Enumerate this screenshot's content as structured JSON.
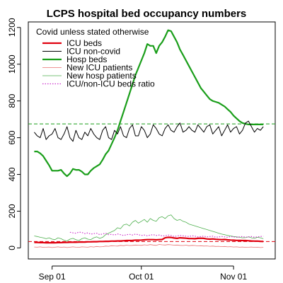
{
  "chart_data": {
    "type": "line",
    "title": "LCPS hospital bed occupancy numbers",
    "xlabel": "",
    "ylabel": "",
    "legend": {
      "title": "Covid unless stated otherwise",
      "placement": "top-left",
      "entries": [
        {
          "label": "ICU beds",
          "color": "#e0000f",
          "style": "solid-thick"
        },
        {
          "label": "ICU non-covid",
          "color": "#000000",
          "style": "solid"
        },
        {
          "label": "Hosp beds",
          "color": "#1a9e1a",
          "style": "solid-thick"
        },
        {
          "label": "New ICU patients",
          "color": "#e87070",
          "style": "solid-thin"
        },
        {
          "label": "New hosp patients",
          "color": "#4caf4c",
          "style": "solid-thin"
        },
        {
          "label": "ICU/non-ICU beds ratio",
          "color": "#cc33cc",
          "style": "dotted"
        }
      ]
    },
    "x_axis": {
      "ticks": [
        {
          "day": 0,
          "label": "Sep 01"
        },
        {
          "day": 30,
          "label": "Oct 01"
        },
        {
          "day": 61,
          "label": "Nov 01"
        }
      ],
      "xlim": [
        -8,
        75
      ]
    },
    "y_axis": {
      "ticks": [
        0,
        200,
        400,
        600,
        800,
        1000,
        1200
      ],
      "ylim": [
        -60,
        1230
      ]
    },
    "reference_lines": [
      {
        "y": 675,
        "color": "#1a9e1a",
        "style": "dashed"
      },
      {
        "y": 35,
        "color": "#e0000f",
        "style": "dashed"
      }
    ],
    "series": [
      {
        "name": "Hosp beds",
        "color": "#1a9e1a",
        "x": [
          -6,
          -5,
          -4,
          -3,
          -2,
          -1,
          0,
          1,
          2,
          3,
          4,
          5,
          6,
          7,
          8,
          9,
          10,
          11,
          12,
          13,
          14,
          15,
          16,
          17,
          18,
          19,
          20,
          21,
          22,
          23,
          24,
          25,
          26,
          27,
          28,
          29,
          30,
          31,
          32,
          33,
          34,
          35,
          36,
          37,
          38,
          39,
          40,
          41,
          42,
          43,
          44,
          45,
          46,
          47,
          48,
          49,
          50,
          51,
          52,
          53,
          54,
          55,
          56,
          57,
          58,
          59,
          60,
          61,
          62,
          63,
          64,
          65,
          66,
          67,
          68,
          69,
          70,
          71
        ],
        "values": [
          525,
          525,
          515,
          500,
          475,
          450,
          420,
          420,
          420,
          425,
          405,
          390,
          405,
          430,
          425,
          425,
          415,
          400,
          400,
          420,
          435,
          445,
          455,
          480,
          510,
          530,
          565,
          600,
          640,
          690,
          740,
          790,
          840,
          890,
          940,
          980,
          1020,
          1060,
          1110,
          1100,
          1100,
          1060,
          1100,
          1120,
          1150,
          1185,
          1180,
          1150,
          1120,
          1080,
          1050,
          1020,
          990,
          960,
          930,
          900,
          870,
          850,
          830,
          810,
          800,
          795,
          790,
          780,
          770,
          755,
          740,
          720,
          705,
          690,
          680,
          675,
          672,
          672,
          672,
          672,
          672,
          672
        ]
      },
      {
        "name": "ICU non-covid",
        "color": "#000000",
        "x": [
          -6,
          -5,
          -4,
          -3,
          -2,
          -1,
          0,
          1,
          2,
          3,
          4,
          5,
          6,
          7,
          8,
          9,
          10,
          11,
          12,
          13,
          14,
          15,
          16,
          17,
          18,
          19,
          20,
          21,
          22,
          23,
          24,
          25,
          26,
          27,
          28,
          29,
          30,
          31,
          32,
          33,
          34,
          35,
          36,
          37,
          38,
          39,
          40,
          41,
          42,
          43,
          44,
          45,
          46,
          47,
          48,
          49,
          50,
          51,
          52,
          53,
          54,
          55,
          56,
          57,
          58,
          59,
          60,
          61,
          62,
          63,
          64,
          65,
          66,
          67,
          68,
          69,
          70,
          71
        ],
        "values": [
          630,
          610,
          600,
          650,
          590,
          610,
          620,
          650,
          600,
          590,
          620,
          660,
          600,
          580,
          640,
          600,
          590,
          630,
          610,
          650,
          620,
          600,
          590,
          640,
          660,
          600,
          590,
          640,
          620,
          660,
          610,
          600,
          650,
          670,
          610,
          610,
          660,
          640,
          600,
          620,
          670,
          650,
          620,
          610,
          650,
          670,
          640,
          630,
          660,
          680,
          630,
          640,
          660,
          640,
          630,
          670,
          650,
          630,
          660,
          670,
          620,
          640,
          660,
          610,
          640,
          670,
          630,
          650,
          660,
          620,
          640,
          680,
          690,
          660,
          630,
          650,
          640,
          660
        ]
      },
      {
        "name": "ICU beds",
        "color": "#e0000f",
        "x": [
          -6,
          -5,
          -4,
          -3,
          -2,
          -1,
          0,
          1,
          2,
          3,
          4,
          5,
          6,
          7,
          8,
          9,
          10,
          11,
          12,
          13,
          14,
          15,
          16,
          17,
          18,
          19,
          20,
          21,
          22,
          23,
          24,
          25,
          26,
          27,
          28,
          29,
          30,
          31,
          32,
          33,
          34,
          35,
          36,
          37,
          38,
          39,
          40,
          41,
          42,
          43,
          44,
          45,
          46,
          47,
          48,
          49,
          50,
          51,
          52,
          53,
          54,
          55,
          56,
          57,
          58,
          59,
          60,
          61,
          62,
          63,
          64,
          65,
          66,
          67,
          68,
          69,
          70,
          71
        ],
        "values": [
          30,
          30,
          29,
          29,
          28,
          28,
          28,
          28,
          29,
          29,
          30,
          30,
          31,
          31,
          31,
          32,
          32,
          32,
          33,
          33,
          34,
          34,
          35,
          35,
          36,
          36,
          37,
          37,
          38,
          38,
          39,
          40,
          40,
          41,
          42,
          42,
          43,
          44,
          45,
          45,
          45,
          44,
          45,
          46,
          55,
          58,
          57,
          54,
          52,
          55,
          54,
          53,
          51,
          51,
          50,
          52,
          53,
          52,
          49,
          48,
          49,
          47,
          46,
          45,
          46,
          44,
          43,
          42,
          41,
          41,
          40,
          40,
          39,
          38,
          37,
          37,
          36,
          35
        ]
      },
      {
        "name": "New hosp patients",
        "color": "#4caf4c",
        "x": [
          -6,
          -5,
          -4,
          -3,
          -2,
          -1,
          0,
          1,
          2,
          3,
          4,
          5,
          6,
          7,
          8,
          9,
          10,
          11,
          12,
          13,
          14,
          15,
          16,
          17,
          18,
          19,
          20,
          21,
          22,
          23,
          24,
          25,
          26,
          27,
          28,
          29,
          30,
          31,
          32,
          33,
          34,
          35,
          36,
          37,
          38,
          39,
          40,
          41,
          42,
          43,
          44,
          45,
          46,
          47,
          48,
          49,
          50,
          51,
          52,
          53,
          54,
          55,
          56,
          57,
          58,
          59,
          60,
          61,
          62,
          63,
          64,
          65,
          66,
          67,
          68,
          69,
          70,
          71
        ],
        "values": [
          65,
          62,
          58,
          55,
          50,
          55,
          48,
          45,
          55,
          50,
          42,
          38,
          48,
          52,
          45,
          40,
          50,
          55,
          48,
          45,
          55,
          60,
          52,
          58,
          72,
          80,
          88,
          95,
          110,
          105,
          125,
          130,
          120,
          140,
          150,
          135,
          145,
          155,
          140,
          160,
          150,
          145,
          165,
          170,
          160,
          175,
          180,
          160,
          150,
          155,
          145,
          140,
          130,
          125,
          120,
          115,
          110,
          105,
          100,
          95,
          90,
          85,
          80,
          75,
          72,
          68,
          65,
          62,
          60,
          58,
          55,
          56,
          60,
          55,
          52,
          58,
          55,
          50
        ]
      },
      {
        "name": "ICU/non-ICU beds ratio",
        "color": "#cc33cc",
        "x": [
          6,
          7,
          8,
          9,
          10,
          11,
          12,
          13,
          14,
          15,
          16,
          17,
          18,
          19,
          20,
          21,
          22,
          23,
          24,
          25,
          26,
          27,
          28,
          29,
          30,
          31,
          32,
          33,
          34,
          35,
          36,
          37,
          38,
          39,
          40,
          41,
          42,
          43,
          44,
          45,
          46,
          47,
          48,
          49,
          50,
          51,
          52,
          53,
          54,
          55,
          56,
          57,
          58,
          59,
          60,
          61,
          62,
          63,
          64,
          65,
          66,
          67,
          68,
          69,
          70,
          71
        ],
        "values": [
          85,
          82,
          80,
          86,
          84,
          78,
          82,
          75,
          78,
          80,
          72,
          76,
          80,
          72,
          74,
          70,
          76,
          72,
          68,
          72,
          74,
          70,
          75,
          72,
          68,
          70,
          66,
          70,
          72,
          68,
          70,
          65,
          66,
          70,
          68,
          62,
          65,
          68,
          66,
          64,
          62,
          66,
          64,
          60,
          62,
          64,
          60,
          62,
          64,
          58,
          60,
          62,
          60,
          58,
          62,
          60,
          58,
          60,
          62,
          58,
          60,
          62,
          58,
          60,
          62,
          64
        ]
      },
      {
        "name": "New ICU patients",
        "color": "#e87070",
        "x": [
          -6,
          -5,
          -4,
          -3,
          -2,
          -1,
          0,
          1,
          2,
          3,
          4,
          5,
          6,
          7,
          8,
          9,
          10,
          11,
          12,
          13,
          14,
          15,
          16,
          17,
          18,
          19,
          20,
          21,
          22,
          23,
          24,
          25,
          26,
          27,
          28,
          29,
          30,
          31,
          32,
          33,
          34,
          35,
          36,
          37,
          38,
          39,
          40,
          41,
          42,
          43,
          44,
          45,
          46,
          47,
          48,
          49,
          50,
          51,
          52,
          53,
          54,
          55,
          56,
          57,
          58,
          59,
          60,
          61,
          62,
          63,
          64,
          65,
          66,
          67,
          68,
          69,
          70,
          71
        ],
        "values": [
          5,
          4,
          6,
          3,
          4,
          5,
          2,
          4,
          6,
          3,
          5,
          2,
          4,
          6,
          4,
          3,
          6,
          5,
          4,
          7,
          5,
          8,
          6,
          7,
          10,
          9,
          12,
          11,
          10,
          14,
          12,
          15,
          13,
          14,
          16,
          15,
          14,
          17,
          15,
          18,
          16,
          14,
          19,
          17,
          16,
          18,
          17,
          15,
          16,
          14,
          13,
          15,
          12,
          14,
          13,
          11,
          12,
          10,
          11,
          9,
          10,
          8,
          9,
          7,
          8,
          6,
          7,
          5,
          6,
          4,
          5,
          3,
          4,
          5,
          3,
          4,
          2,
          3
        ]
      }
    ]
  }
}
